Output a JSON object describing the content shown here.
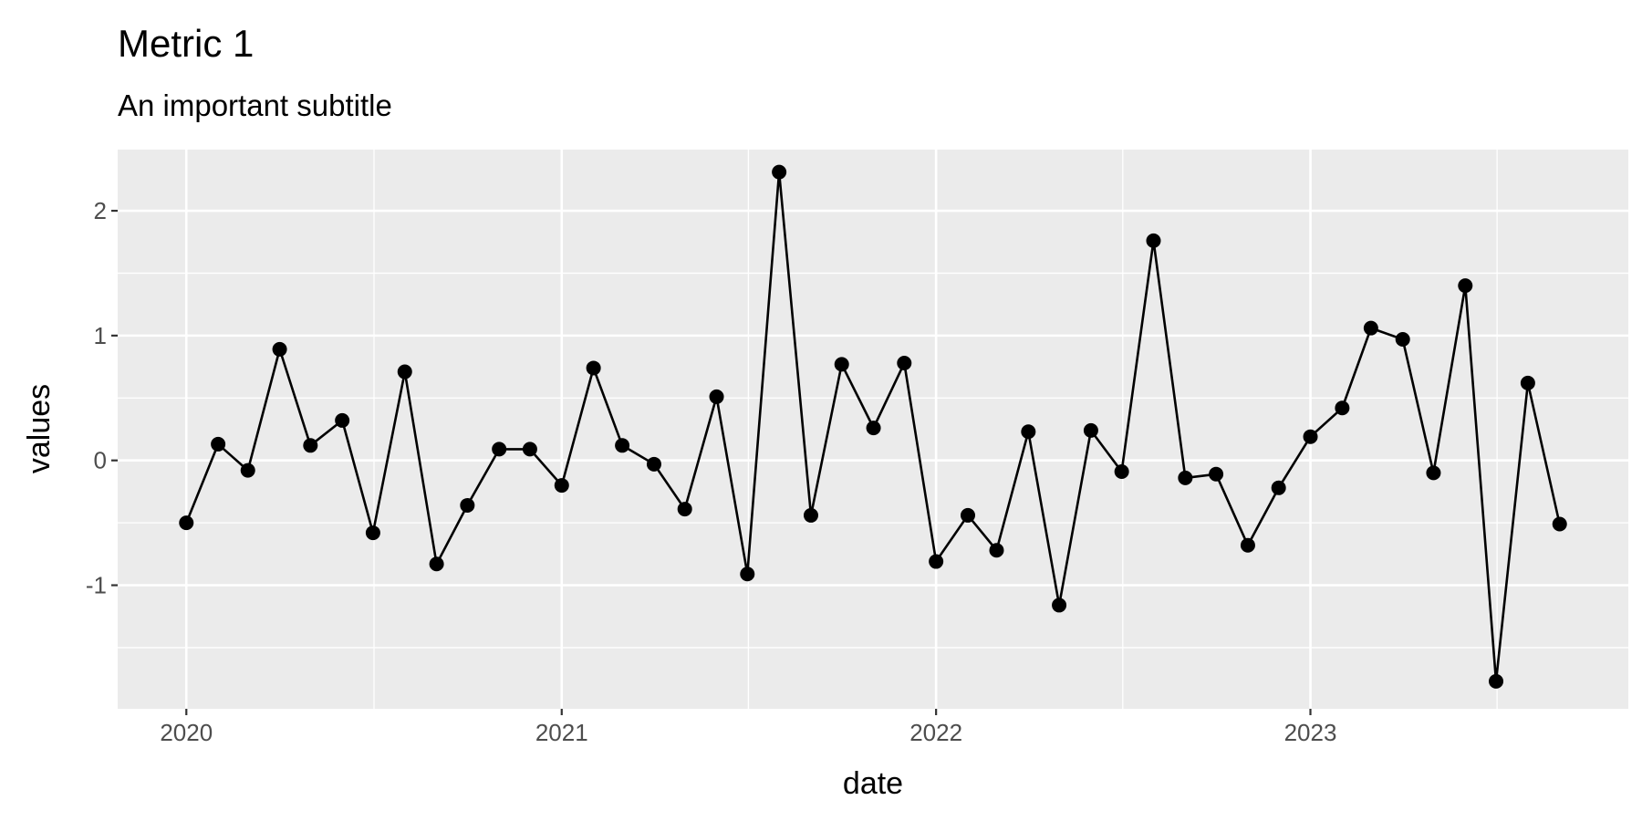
{
  "chart_data": {
    "type": "line",
    "title": "Metric 1",
    "subtitle": "An important subtitle",
    "xlabel": "date",
    "ylabel": "values",
    "x_ticks": [
      "2020",
      "2021",
      "2022",
      "2023"
    ],
    "y_ticks": [
      "-1",
      "0",
      "1",
      "2"
    ],
    "ylim": [
      -1.99,
      2.49
    ],
    "grid": true,
    "markers": true,
    "colors": {
      "panel": "#ebebeb",
      "grid": "#ffffff",
      "line": "#000000",
      "tick_text": "#4d4d4d"
    },
    "x": [
      "2020-01-01",
      "2020-02-01",
      "2020-03-01",
      "2020-04-01",
      "2020-05-01",
      "2020-06-01",
      "2020-07-01",
      "2020-08-01",
      "2020-09-01",
      "2020-10-01",
      "2020-11-01",
      "2020-12-01",
      "2021-01-01",
      "2021-02-01",
      "2021-03-01",
      "2021-04-01",
      "2021-05-01",
      "2021-06-01",
      "2021-07-01",
      "2021-08-01",
      "2021-09-01",
      "2021-10-01",
      "2021-11-01",
      "2021-12-01",
      "2022-01-01",
      "2022-02-01",
      "2022-03-01",
      "2022-04-01",
      "2022-05-01",
      "2022-06-01",
      "2022-07-01",
      "2022-08-01",
      "2022-09-01",
      "2022-10-01",
      "2022-11-01",
      "2022-12-01",
      "2023-01-01",
      "2023-02-01",
      "2023-03-01",
      "2023-04-01",
      "2023-05-01",
      "2023-06-01",
      "2023-07-01",
      "2023-08-01",
      "2023-09-01"
    ],
    "values": [
      -0.5,
      0.13,
      -0.08,
      0.89,
      0.12,
      0.32,
      -0.58,
      0.71,
      -0.83,
      -0.36,
      0.09,
      0.09,
      -0.2,
      0.74,
      0.12,
      -0.03,
      -0.39,
      0.51,
      -0.91,
      2.31,
      -0.44,
      0.77,
      0.26,
      0.78,
      -0.81,
      -0.44,
      -0.72,
      0.23,
      -1.16,
      0.24,
      -0.09,
      1.76,
      -0.14,
      -0.11,
      -0.68,
      -0.22,
      0.19,
      0.42,
      1.06,
      0.97,
      -0.1,
      1.4,
      -1.77,
      0.62,
      -0.51
    ]
  }
}
